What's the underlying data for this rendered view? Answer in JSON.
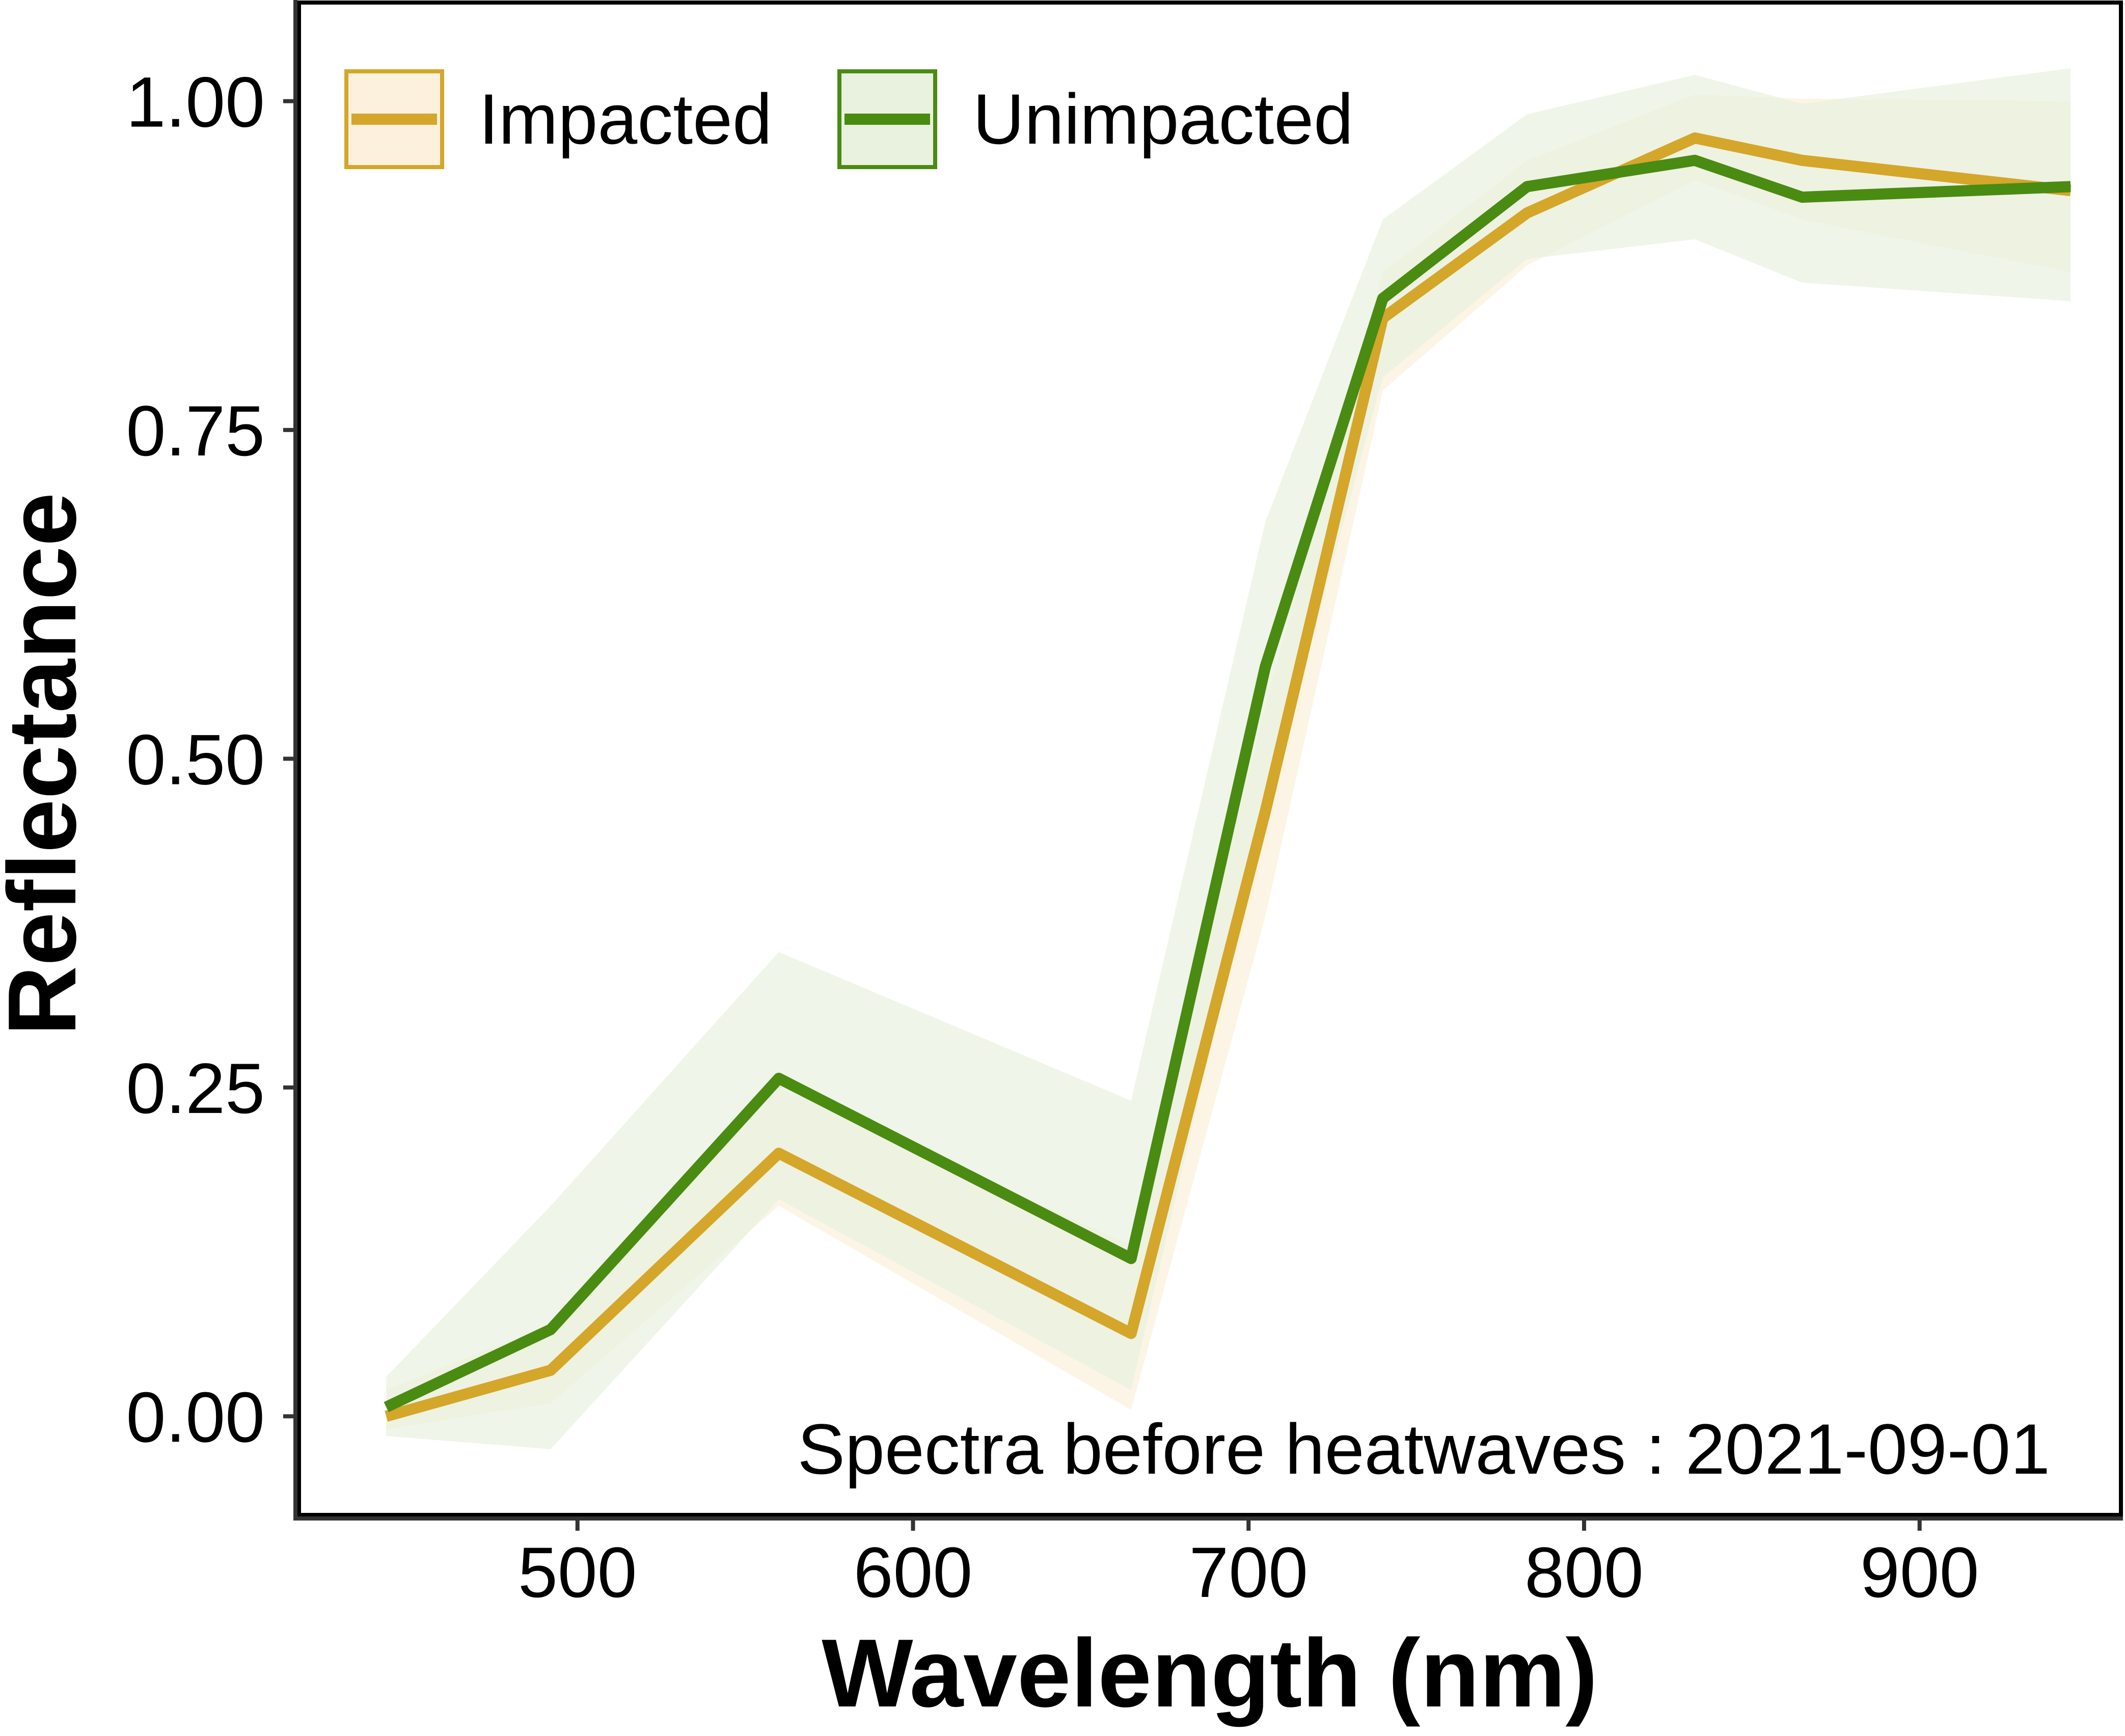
{
  "chart_data": {
    "type": "line",
    "xlabel": "Wavelength (nm)",
    "ylabel": "Reflectance",
    "annotation": "Spectra before heatwaves : 2021-09-01",
    "xlim": [
      417,
      960
    ],
    "ylim": [
      -0.075,
      1.075
    ],
    "xticks": [
      500,
      600,
      700,
      800,
      900
    ],
    "xtick_labels": [
      "500",
      "600",
      "700",
      "800",
      "900"
    ],
    "yticks": [
      0.0,
      0.25,
      0.5,
      0.75,
      1.0
    ],
    "ytick_labels": [
      "0.00",
      "0.25",
      "0.50",
      "0.75",
      "1.00"
    ],
    "grid": false,
    "legend_position": "top-left",
    "x": [
      443,
      492,
      560,
      665,
      705,
      740,
      783,
      833,
      865,
      945
    ],
    "series": [
      {
        "name": "Impacted",
        "color": "#D4A62A",
        "band_color": "#FBF1DD",
        "values": [
          0.0,
          0.035,
          0.2,
          0.063,
          0.46,
          0.835,
          0.915,
          0.972,
          0.955,
          0.932
        ],
        "lower": [
          -0.01,
          0.01,
          0.16,
          0.005,
          0.38,
          0.78,
          0.875,
          0.94,
          0.91,
          0.87
        ],
        "upper": [
          0.02,
          0.07,
          0.25,
          0.13,
          0.54,
          0.87,
          0.955,
          1.005,
          1.002,
          1.0
        ]
      },
      {
        "name": "Unimpacted",
        "color": "#4A8B12",
        "band_color": "#E9F1DF",
        "values": [
          0.007,
          0.066,
          0.257,
          0.12,
          0.57,
          0.85,
          0.935,
          0.955,
          0.927,
          0.935
        ],
        "lower": [
          -0.015,
          -0.025,
          0.165,
          0.02,
          0.46,
          0.79,
          0.88,
          0.895,
          0.862,
          0.848
        ],
        "upper": [
          0.03,
          0.16,
          0.353,
          0.24,
          0.68,
          0.91,
          0.99,
          1.02,
          0.998,
          1.025
        ]
      }
    ]
  }
}
